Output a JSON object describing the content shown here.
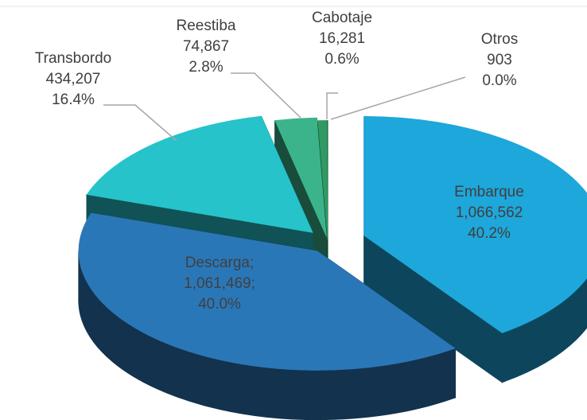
{
  "chart_data": {
    "type": "pie",
    "categories": [
      "Embarque",
      "Descarga;",
      "Transbordo",
      "Reestiba",
      "Cabotaje",
      "Otros"
    ],
    "values": [
      1066562,
      1061469,
      434207,
      74867,
      16281,
      903
    ],
    "value_labels": [
      "1,066,562",
      "1,061,469;",
      "434,207",
      "74,867",
      "16,281",
      "903"
    ],
    "percents": [
      40.2,
      40.0,
      16.4,
      2.8,
      0.6,
      0.0
    ],
    "percent_labels": [
      "40.2%",
      "40.0%",
      "16.4%",
      "2.8%",
      "0.6%",
      "0.0%"
    ],
    "colors": [
      "#1ea7db",
      "#2a77b8",
      "#26c3ca",
      "#3bb48c",
      "#2f9a63",
      "#1f6f45"
    ]
  }
}
